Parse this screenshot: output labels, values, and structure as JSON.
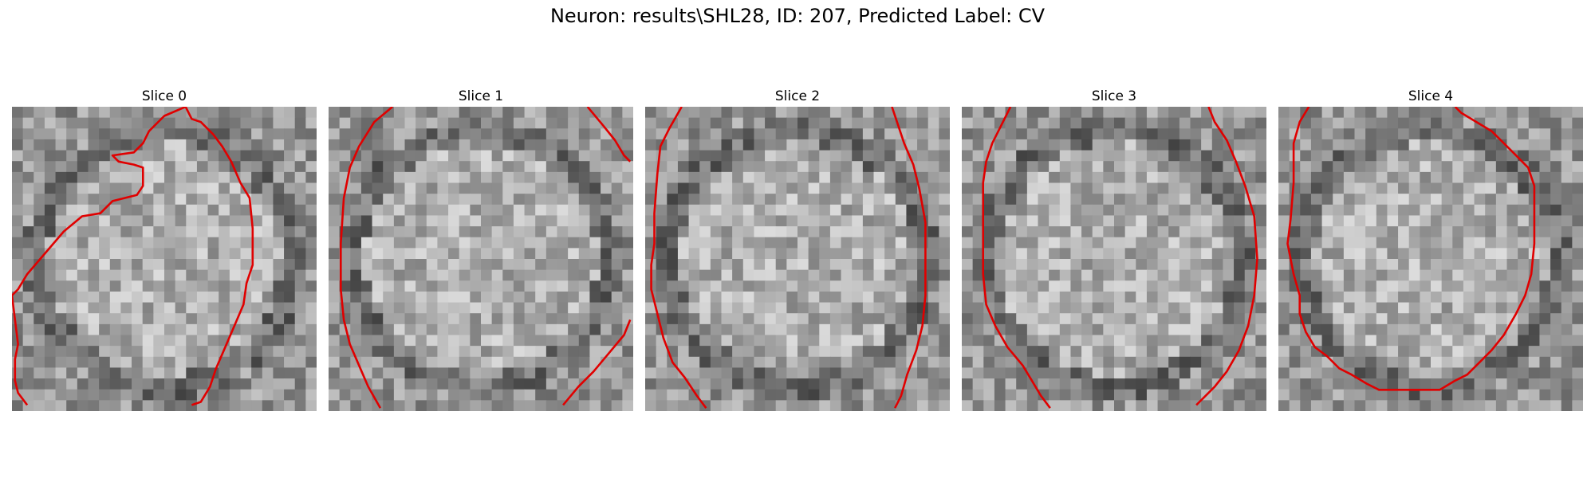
{
  "figure": {
    "title": "Neuron: results\\SHL28, ID: 207, Predicted Label: CV"
  },
  "panels": [
    {
      "title": "Slice 0",
      "seed": 11,
      "contour": [
        [
          0.57,
          0.0
        ],
        [
          0.59,
          0.04
        ],
        [
          0.62,
          0.05
        ],
        [
          0.66,
          0.09
        ],
        [
          0.69,
          0.13
        ],
        [
          0.72,
          0.18
        ],
        [
          0.75,
          0.25
        ],
        [
          0.78,
          0.3
        ],
        [
          0.79,
          0.4
        ],
        [
          0.79,
          0.52
        ],
        [
          0.77,
          0.58
        ],
        [
          0.76,
          0.65
        ],
        [
          0.73,
          0.72
        ],
        [
          0.7,
          0.79
        ],
        [
          0.67,
          0.86
        ],
        [
          0.65,
          0.92
        ],
        [
          0.62,
          0.97
        ],
        [
          0.59,
          0.98
        ]
      ],
      "contour2": [
        [
          0.05,
          0.98
        ],
        [
          0.02,
          0.94
        ],
        [
          0.01,
          0.9
        ],
        [
          0.01,
          0.83
        ],
        [
          0.02,
          0.78
        ],
        [
          0.01,
          0.7
        ],
        [
          0.0,
          0.62
        ],
        [
          0.02,
          0.6
        ],
        [
          0.05,
          0.55
        ],
        [
          0.11,
          0.48
        ],
        [
          0.17,
          0.41
        ],
        [
          0.23,
          0.36
        ],
        [
          0.29,
          0.35
        ],
        [
          0.33,
          0.31
        ],
        [
          0.41,
          0.29
        ],
        [
          0.43,
          0.26
        ],
        [
          0.43,
          0.2
        ],
        [
          0.4,
          0.19
        ],
        [
          0.35,
          0.18
        ],
        [
          0.33,
          0.16
        ],
        [
          0.4,
          0.15
        ],
        [
          0.43,
          0.12
        ],
        [
          0.45,
          0.08
        ],
        [
          0.5,
          0.03
        ],
        [
          0.57,
          0.0
        ]
      ]
    },
    {
      "title": "Slice 1",
      "seed": 23,
      "contour": [
        [
          0.21,
          0.0
        ],
        [
          0.15,
          0.05
        ],
        [
          0.1,
          0.13
        ],
        [
          0.07,
          0.2
        ],
        [
          0.05,
          0.3
        ],
        [
          0.04,
          0.45
        ],
        [
          0.04,
          0.6
        ],
        [
          0.05,
          0.7
        ],
        [
          0.07,
          0.78
        ],
        [
          0.1,
          0.85
        ],
        [
          0.13,
          0.92
        ],
        [
          0.17,
          0.99
        ]
      ],
      "contour2": [
        [
          0.85,
          0.0
        ],
        [
          0.9,
          0.06
        ],
        [
          0.94,
          0.11
        ],
        [
          0.97,
          0.16
        ],
        [
          0.99,
          0.18
        ]
      ],
      "contour3": [
        [
          0.99,
          0.7
        ],
        [
          0.97,
          0.75
        ],
        [
          0.92,
          0.81
        ],
        [
          0.87,
          0.87
        ],
        [
          0.82,
          0.92
        ],
        [
          0.77,
          0.98
        ]
      ]
    },
    {
      "title": "Slice 2",
      "seed": 37,
      "contour": [
        [
          0.12,
          0.0
        ],
        [
          0.08,
          0.07
        ],
        [
          0.05,
          0.13
        ],
        [
          0.04,
          0.22
        ],
        [
          0.03,
          0.35
        ],
        [
          0.03,
          0.45
        ],
        [
          0.02,
          0.52
        ],
        [
          0.02,
          0.6
        ],
        [
          0.04,
          0.68
        ],
        [
          0.06,
          0.76
        ],
        [
          0.09,
          0.84
        ],
        [
          0.13,
          0.89
        ],
        [
          0.17,
          0.95
        ],
        [
          0.2,
          0.99
        ]
      ],
      "contour2": [
        [
          0.81,
          0.0
        ],
        [
          0.83,
          0.06
        ],
        [
          0.85,
          0.12
        ],
        [
          0.88,
          0.19
        ],
        [
          0.9,
          0.27
        ],
        [
          0.92,
          0.38
        ],
        [
          0.92,
          0.5
        ],
        [
          0.92,
          0.62
        ],
        [
          0.91,
          0.72
        ],
        [
          0.89,
          0.8
        ],
        [
          0.86,
          0.88
        ],
        [
          0.84,
          0.95
        ],
        [
          0.82,
          0.99
        ]
      ]
    },
    {
      "title": "Slice 3",
      "seed": 41,
      "contour": [
        [
          0.16,
          0.0
        ],
        [
          0.13,
          0.06
        ],
        [
          0.1,
          0.12
        ],
        [
          0.08,
          0.18
        ],
        [
          0.07,
          0.25
        ],
        [
          0.07,
          0.4
        ],
        [
          0.07,
          0.55
        ],
        [
          0.08,
          0.65
        ],
        [
          0.11,
          0.72
        ],
        [
          0.15,
          0.79
        ],
        [
          0.2,
          0.85
        ],
        [
          0.23,
          0.9
        ],
        [
          0.26,
          0.95
        ],
        [
          0.29,
          0.99
        ]
      ],
      "contour2": [
        [
          0.81,
          0.0
        ],
        [
          0.83,
          0.05
        ],
        [
          0.87,
          0.11
        ],
        [
          0.9,
          0.18
        ],
        [
          0.93,
          0.26
        ],
        [
          0.96,
          0.36
        ],
        [
          0.97,
          0.5
        ],
        [
          0.96,
          0.62
        ],
        [
          0.94,
          0.72
        ],
        [
          0.91,
          0.8
        ],
        [
          0.87,
          0.87
        ],
        [
          0.83,
          0.92
        ],
        [
          0.77,
          0.98
        ]
      ]
    },
    {
      "title": "Slice 4",
      "seed": 53,
      "contour": [
        [
          0.1,
          0.0
        ],
        [
          0.07,
          0.05
        ],
        [
          0.05,
          0.12
        ],
        [
          0.05,
          0.25
        ],
        [
          0.04,
          0.37
        ],
        [
          0.03,
          0.45
        ],
        [
          0.05,
          0.55
        ],
        [
          0.07,
          0.62
        ],
        [
          0.07,
          0.68
        ],
        [
          0.09,
          0.74
        ],
        [
          0.12,
          0.79
        ],
        [
          0.16,
          0.82
        ],
        [
          0.2,
          0.86
        ],
        [
          0.24,
          0.88
        ],
        [
          0.29,
          0.91
        ],
        [
          0.33,
          0.93
        ],
        [
          0.41,
          0.93
        ],
        [
          0.53,
          0.93
        ],
        [
          0.58,
          0.9
        ],
        [
          0.62,
          0.88
        ],
        [
          0.66,
          0.84
        ],
        [
          0.7,
          0.8
        ],
        [
          0.74,
          0.75
        ],
        [
          0.78,
          0.68
        ],
        [
          0.81,
          0.62
        ],
        [
          0.83,
          0.55
        ],
        [
          0.84,
          0.45
        ],
        [
          0.84,
          0.35
        ],
        [
          0.84,
          0.26
        ],
        [
          0.82,
          0.2
        ],
        [
          0.78,
          0.16
        ],
        [
          0.74,
          0.12
        ],
        [
          0.7,
          0.08
        ],
        [
          0.65,
          0.05
        ],
        [
          0.6,
          0.02
        ],
        [
          0.58,
          0.0
        ]
      ]
    }
  ],
  "colors": {
    "contour": "#e00000"
  }
}
